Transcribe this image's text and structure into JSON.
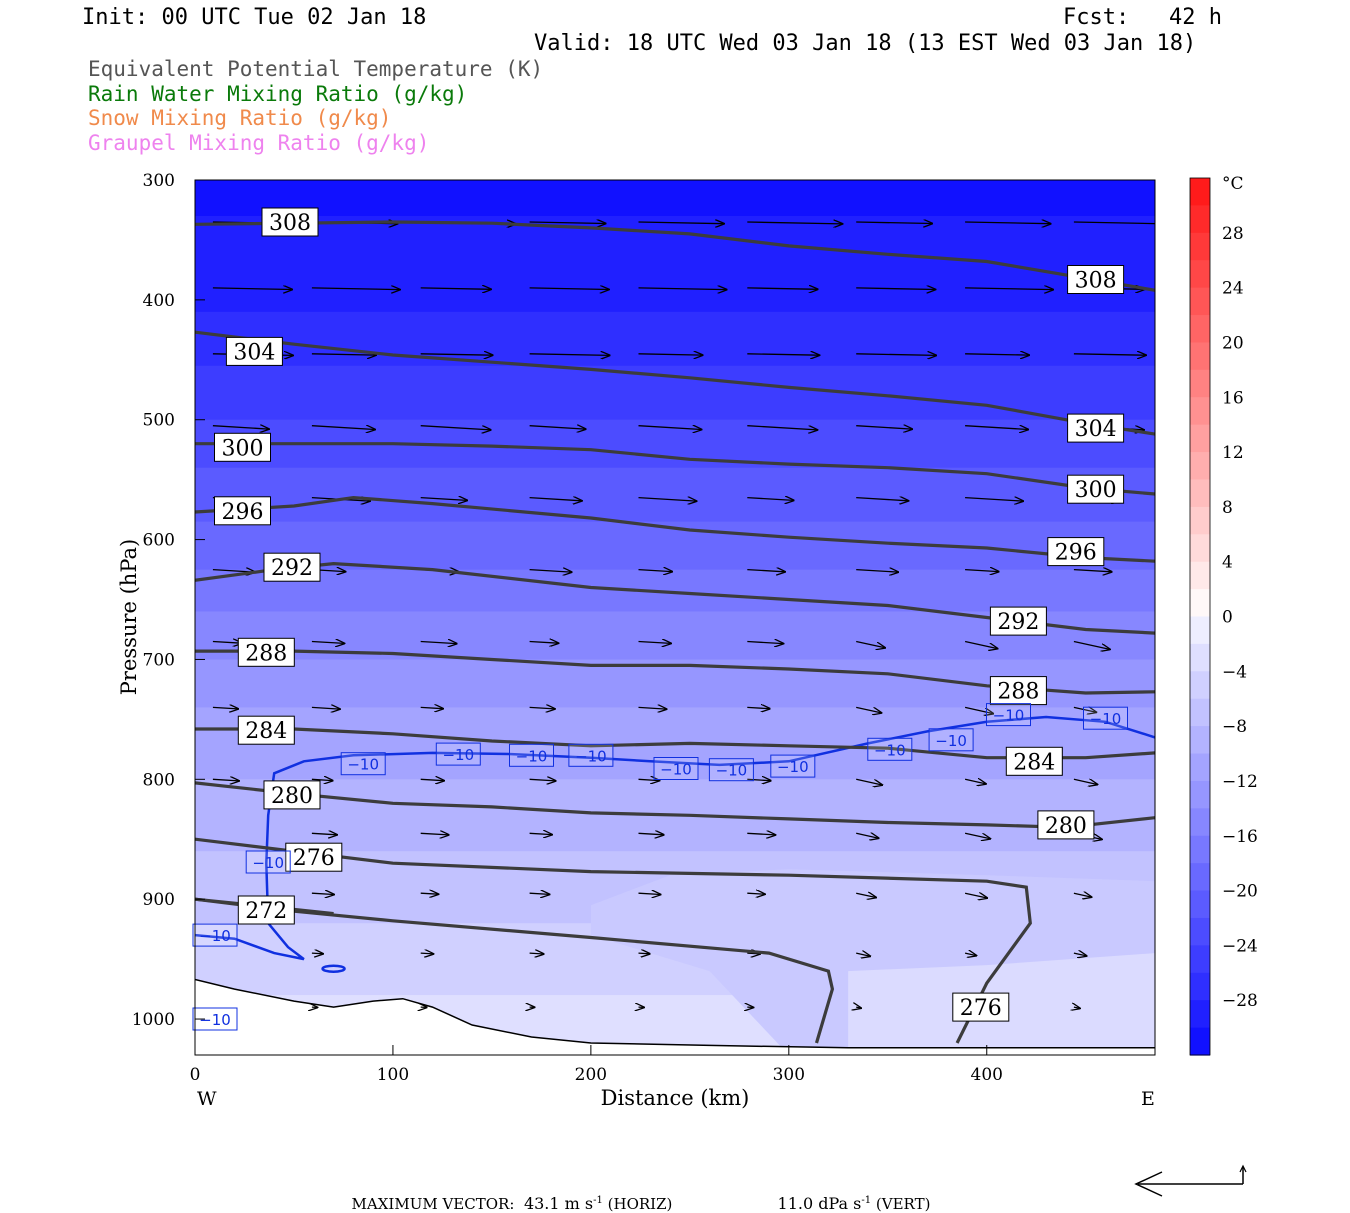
{
  "header": {
    "init": "Init: 00 UTC Tue 02 Jan 18",
    "fcst_label": "Fcst:",
    "fcst_value": "42 h",
    "valid": "Valid: 18 UTC Wed 03 Jan 18 (13 EST Wed 03 Jan 18)"
  },
  "legend": [
    {
      "label": "Equivalent Potential Temperature (K)",
      "color": "#555555"
    },
    {
      "label": "Rain Water Mixing Ratio (g/kg)",
      "color": "#0a7a0a"
    },
    {
      "label": "Snow Mixing Ratio (g/kg)",
      "color": "#f08a4b"
    },
    {
      "label": "Graupel Mixing Ratio (g/kg)",
      "color": "#ee82ee"
    }
  ],
  "footer": {
    "max_vector_label": "MAXIMUM VECTOR:",
    "horiz_value": "43.1 m s",
    "horiz_exp": "-1",
    "horiz_tag": "(HORIZ)",
    "vert_value": "11.0 dPa s",
    "vert_exp": "-1",
    "vert_tag": "(VERT)"
  },
  "chart_data": {
    "type": "cross-section contour",
    "xlabel": "Distance (km)",
    "ylabel": "Pressure (hPa)",
    "x_ticks": [
      0,
      100,
      200,
      300,
      400
    ],
    "y_ticks": [
      300,
      400,
      500,
      600,
      700,
      800,
      900,
      1000
    ],
    "xlim": [
      0,
      485
    ],
    "ylim": [
      300,
      1030
    ],
    "y_scale": "linear-inverted",
    "x_end_labels": {
      "left": "W",
      "right": "E"
    },
    "colorbar": {
      "unit": "°C",
      "tick_labels": [
        "28",
        "24",
        "20",
        "16",
        "12",
        "8",
        "4",
        "0",
        "-4",
        "-8",
        "-12",
        "-16",
        "-20",
        "-24",
        "-28"
      ],
      "range": [
        -32,
        32
      ],
      "interval": 2
    },
    "theta_e_contours": [
      {
        "value": 308,
        "points": [
          [
            0,
            337
          ],
          [
            50,
            336
          ],
          [
            100,
            335
          ],
          [
            150,
            336
          ],
          [
            200,
            340
          ],
          [
            250,
            345
          ],
          [
            300,
            355
          ],
          [
            350,
            362
          ],
          [
            400,
            368
          ],
          [
            450,
            382
          ],
          [
            485,
            392
          ]
        ],
        "labels": [
          [
            48,
            335
          ],
          [
            455,
            383
          ]
        ]
      },
      {
        "value": 304,
        "points": [
          [
            0,
            427
          ],
          [
            50,
            437
          ],
          [
            100,
            446
          ],
          [
            150,
            452
          ],
          [
            200,
            458
          ],
          [
            250,
            465
          ],
          [
            300,
            473
          ],
          [
            350,
            480
          ],
          [
            400,
            488
          ],
          [
            450,
            503
          ],
          [
            485,
            512
          ]
        ],
        "labels": [
          [
            30,
            443
          ],
          [
            455,
            507
          ]
        ]
      },
      {
        "value": 300,
        "points": [
          [
            0,
            520
          ],
          [
            50,
            520
          ],
          [
            100,
            520
          ],
          [
            150,
            522
          ],
          [
            200,
            525
          ],
          [
            250,
            533
          ],
          [
            300,
            537
          ],
          [
            350,
            540
          ],
          [
            400,
            545
          ],
          [
            450,
            557
          ],
          [
            485,
            562
          ]
        ],
        "labels": [
          [
            24,
            523
          ],
          [
            455,
            558
          ]
        ]
      },
      {
        "value": 296,
        "points": [
          [
            0,
            577
          ],
          [
            50,
            572
          ],
          [
            80,
            565
          ],
          [
            120,
            570
          ],
          [
            200,
            582
          ],
          [
            250,
            592
          ],
          [
            300,
            598
          ],
          [
            350,
            603
          ],
          [
            400,
            607
          ],
          [
            450,
            615
          ],
          [
            485,
            618
          ]
        ],
        "labels": [
          [
            24,
            576
          ],
          [
            445,
            610
          ]
        ]
      },
      {
        "value": 292,
        "points": [
          [
            0,
            634
          ],
          [
            40,
            625
          ],
          [
            70,
            620
          ],
          [
            120,
            625
          ],
          [
            200,
            640
          ],
          [
            250,
            645
          ],
          [
            300,
            650
          ],
          [
            350,
            655
          ],
          [
            400,
            665
          ],
          [
            450,
            675
          ],
          [
            485,
            678
          ]
        ],
        "labels": [
          [
            49,
            623
          ],
          [
            416,
            668
          ]
        ]
      },
      {
        "value": 288,
        "points": [
          [
            0,
            693
          ],
          [
            50,
            693
          ],
          [
            100,
            695
          ],
          [
            150,
            700
          ],
          [
            200,
            705
          ],
          [
            250,
            705
          ],
          [
            300,
            708
          ],
          [
            350,
            712
          ],
          [
            400,
            722
          ],
          [
            450,
            728
          ],
          [
            485,
            727
          ]
        ],
        "labels": [
          [
            36,
            694
          ],
          [
            416,
            726
          ]
        ]
      },
      {
        "value": 284,
        "points": [
          [
            0,
            758
          ],
          [
            50,
            758
          ],
          [
            100,
            762
          ],
          [
            150,
            768
          ],
          [
            200,
            772
          ],
          [
            250,
            770
          ],
          [
            300,
            772
          ],
          [
            350,
            774
          ],
          [
            400,
            782
          ],
          [
            450,
            782
          ],
          [
            485,
            778
          ]
        ],
        "labels": [
          [
            36,
            759
          ],
          [
            424,
            785
          ]
        ]
      },
      {
        "value": 280,
        "points": [
          [
            0,
            803
          ],
          [
            50,
            812
          ],
          [
            100,
            820
          ],
          [
            150,
            823
          ],
          [
            200,
            828
          ],
          [
            250,
            830
          ],
          [
            300,
            833
          ],
          [
            350,
            836
          ],
          [
            400,
            838
          ],
          [
            440,
            840
          ],
          [
            485,
            832
          ]
        ],
        "labels": [
          [
            49,
            813
          ],
          [
            440,
            838
          ]
        ]
      },
      {
        "value": 276,
        "points": [
          [
            0,
            850
          ],
          [
            50,
            860
          ],
          [
            100,
            870
          ],
          [
            200,
            877
          ],
          [
            300,
            880
          ],
          [
            400,
            885
          ],
          [
            420,
            890
          ],
          [
            422,
            920
          ],
          [
            400,
            970
          ],
          [
            385,
            1020
          ]
        ],
        "labels": [
          [
            60,
            865
          ],
          [
            397,
            990
          ]
        ]
      },
      {
        "value": 276,
        "points": [
          [
            314,
            1020
          ],
          [
            322,
            975
          ],
          [
            320,
            960
          ],
          [
            290,
            945
          ],
          [
            200,
            932
          ],
          [
            100,
            918
          ],
          [
            50,
            910
          ],
          [
            0,
            900
          ]
        ],
        "labels": []
      },
      {
        "value": 272,
        "points": [
          [
            0,
            900
          ],
          [
            30,
            905
          ],
          [
            70,
            912
          ]
        ],
        "labels": [
          [
            36,
            909
          ]
        ]
      }
    ],
    "temp_contour_m10": {
      "value": -10,
      "points": [
        [
          485,
          765
        ],
        [
          460,
          752
        ],
        [
          430,
          748
        ],
        [
          400,
          752
        ],
        [
          370,
          760
        ],
        [
          340,
          770
        ],
        [
          300,
          785
        ],
        [
          265,
          788
        ],
        [
          230,
          785
        ],
        [
          200,
          782
        ],
        [
          160,
          779
        ],
        [
          120,
          778
        ],
        [
          80,
          780
        ],
        [
          55,
          785
        ],
        [
          40,
          795
        ],
        [
          37,
          830
        ],
        [
          36,
          870
        ],
        [
          37,
          920
        ],
        [
          47,
          940
        ],
        [
          55,
          950
        ],
        [
          40,
          945
        ],
        [
          20,
          933
        ],
        [
          0,
          930
        ]
      ],
      "labels": [
        [
          85,
          787
        ],
        [
          133,
          779
        ],
        [
          170,
          780
        ],
        [
          200,
          780
        ],
        [
          243,
          791
        ],
        [
          271,
          792
        ],
        [
          302,
          789
        ],
        [
          351,
          775
        ],
        [
          382,
          767
        ],
        [
          411,
          746
        ],
        [
          460,
          749
        ],
        [
          0,
          930
        ],
        [
          37,
          869
        ],
        [
          0,
          1000
        ]
      ]
    },
    "terrain_profile": [
      [
        0,
        967
      ],
      [
        20,
        975
      ],
      [
        50,
        985
      ],
      [
        70,
        990
      ],
      [
        90,
        985
      ],
      [
        105,
        983
      ],
      [
        120,
        990
      ],
      [
        140,
        1005
      ],
      [
        170,
        1015
      ],
      [
        200,
        1020
      ],
      [
        260,
        1022
      ],
      [
        330,
        1024
      ],
      [
        420,
        1024
      ],
      [
        485,
        1024
      ]
    ]
  }
}
